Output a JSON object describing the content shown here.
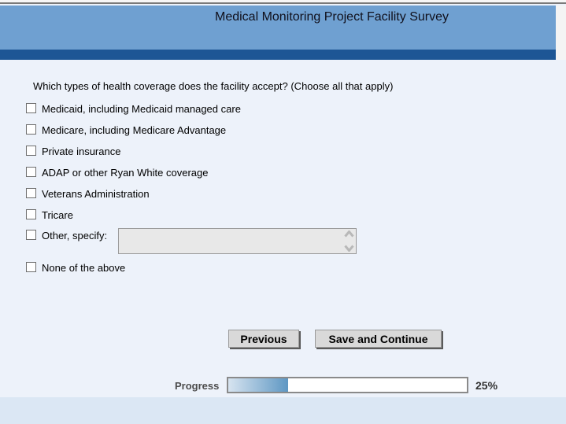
{
  "header": {
    "title": "Medical Monitoring Project Facility Survey"
  },
  "question": {
    "text": "Which types of health coverage does the facility accept? (Choose all that apply)"
  },
  "options": [
    {
      "label": "Medicaid, including Medicaid managed care",
      "checked": false
    },
    {
      "label": "Medicare, including Medicare Advantage",
      "checked": false
    },
    {
      "label": "Private insurance",
      "checked": false
    },
    {
      "label": "ADAP or other Ryan White coverage",
      "checked": false
    },
    {
      "label": "Veterans Administration",
      "checked": false
    },
    {
      "label": "Tricare",
      "checked": false
    },
    {
      "label": "Other, specify:",
      "checked": false,
      "input_value": ""
    },
    {
      "label": "None of the above",
      "checked": false
    }
  ],
  "buttons": {
    "previous": "Previous",
    "save_continue": "Save and Continue"
  },
  "progress": {
    "label": "Progress",
    "percent": 25,
    "percent_label": "25%"
  },
  "colors": {
    "header_blue": "#6fa0d1",
    "accent_stripe_blue": "#1d5695",
    "content_background": "#edf2fa",
    "footer_band": "#dbe7f4",
    "progress_fill_start": "#d7e4f0",
    "progress_fill_end": "#5e97c3"
  }
}
